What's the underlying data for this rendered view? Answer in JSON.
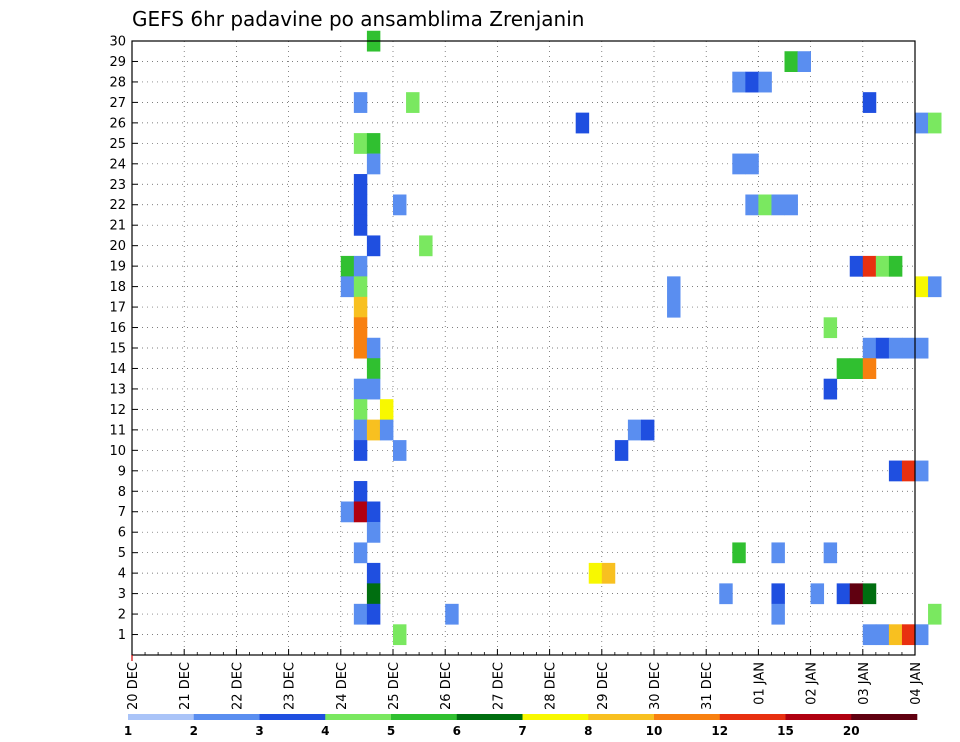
{
  "chart_data": {
    "type": "heatmap",
    "title": "GEFS 6hr padavine po ansamblima Zrenjanin",
    "x_tick_labels": [
      "20 DEC",
      "21 DEC",
      "22 DEC",
      "23 DEC",
      "24 DEC",
      "25 DEC",
      "26 DEC",
      "27 DEC",
      "28 DEC",
      "29 DEC",
      "30 DEC",
      "31 DEC",
      "01 JAN",
      "02 JAN",
      "03 JAN",
      "04 JAN"
    ],
    "y_tick_labels": [
      "1",
      "2",
      "3",
      "4",
      "5",
      "6",
      "7",
      "8",
      "9",
      "10",
      "11",
      "12",
      "13",
      "14",
      "15",
      "16",
      "17",
      "18",
      "19",
      "20",
      "21",
      "22",
      "23",
      "24",
      "25",
      "26",
      "27",
      "28",
      "29",
      "30"
    ],
    "y_range": [
      0,
      30
    ],
    "x_range_days": [
      0,
      15
    ],
    "grid": true,
    "colorbar": {
      "labels": [
        "1",
        "2",
        "3",
        "4",
        "5",
        "6",
        "7",
        "8",
        "10",
        "12",
        "15",
        "20"
      ],
      "colors": [
        "#aac4f8",
        "#5a8ef0",
        "#1f4fe0",
        "#7ae860",
        "#30c030",
        "#006e10",
        "#f8f800",
        "#f8c020",
        "#f88010",
        "#e83010",
        "#b00010",
        "#600010"
      ]
    },
    "cells": [
      {
        "m": 30,
        "t": 18,
        "c": 4
      },
      {
        "m": 29,
        "t": 50,
        "c": 4
      },
      {
        "m": 29,
        "t": 51,
        "c": 1
      },
      {
        "m": 28,
        "t": 46,
        "c": 1
      },
      {
        "m": 28,
        "t": 47,
        "c": 2
      },
      {
        "m": 28,
        "t": 48,
        "c": 1
      },
      {
        "m": 27,
        "t": 17,
        "c": 1
      },
      {
        "m": 27,
        "t": 21,
        "c": 3
      },
      {
        "m": 27,
        "t": 56,
        "c": 2
      },
      {
        "m": 26,
        "t": 34,
        "c": 2
      },
      {
        "m": 26,
        "t": 60,
        "c": 1
      },
      {
        "m": 26,
        "t": 61,
        "c": 3
      },
      {
        "m": 25,
        "t": 17,
        "c": 3
      },
      {
        "m": 25,
        "t": 18,
        "c": 4
      },
      {
        "m": 24,
        "t": 18,
        "c": 1
      },
      {
        "m": 24,
        "t": 46,
        "c": 1
      },
      {
        "m": 24,
        "t": 47,
        "c": 1
      },
      {
        "m": 23,
        "t": 17,
        "c": 2
      },
      {
        "m": 22,
        "t": 17,
        "c": 2
      },
      {
        "m": 22,
        "t": 20,
        "c": 1
      },
      {
        "m": 22,
        "t": 47,
        "c": 1
      },
      {
        "m": 22,
        "t": 48,
        "c": 3
      },
      {
        "m": 22,
        "t": 49,
        "c": 1
      },
      {
        "m": 22,
        "t": 50,
        "c": 1
      },
      {
        "m": 21,
        "t": 17,
        "c": 2
      },
      {
        "m": 20,
        "t": 18,
        "c": 2
      },
      {
        "m": 20,
        "t": 22,
        "c": 3
      },
      {
        "m": 19,
        "t": 16,
        "c": 4
      },
      {
        "m": 19,
        "t": 17,
        "c": 1
      },
      {
        "m": 19,
        "t": 55,
        "c": 2
      },
      {
        "m": 19,
        "t": 56,
        "c": 9
      },
      {
        "m": 19,
        "t": 57,
        "c": 3
      },
      {
        "m": 19,
        "t": 58,
        "c": 4
      },
      {
        "m": 18,
        "t": 16,
        "c": 1
      },
      {
        "m": 18,
        "t": 17,
        "c": 3
      },
      {
        "m": 18,
        "t": 41,
        "c": 1
      },
      {
        "m": 18,
        "t": 60,
        "c": 6
      },
      {
        "m": 18,
        "t": 61,
        "c": 1
      },
      {
        "m": 17,
        "t": 17,
        "c": 7
      },
      {
        "m": 17,
        "t": 41,
        "c": 1
      },
      {
        "m": 16,
        "t": 17,
        "c": 8
      },
      {
        "m": 16,
        "t": 53,
        "c": 3
      },
      {
        "m": 15,
        "t": 17,
        "c": 8
      },
      {
        "m": 15,
        "t": 18,
        "c": 1
      },
      {
        "m": 15,
        "t": 56,
        "c": 1
      },
      {
        "m": 15,
        "t": 57,
        "c": 2
      },
      {
        "m": 15,
        "t": 58,
        "c": 1
      },
      {
        "m": 15,
        "t": 59,
        "c": 1
      },
      {
        "m": 15,
        "t": 60,
        "c": 1
      },
      {
        "m": 14,
        "t": 18,
        "c": 4
      },
      {
        "m": 14,
        "t": 54,
        "c": 4
      },
      {
        "m": 14,
        "t": 55,
        "c": 4
      },
      {
        "m": 14,
        "t": 56,
        "c": 8
      },
      {
        "m": 13,
        "t": 17,
        "c": 1
      },
      {
        "m": 13,
        "t": 18,
        "c": 1
      },
      {
        "m": 13,
        "t": 53,
        "c": 2
      },
      {
        "m": 12,
        "t": 17,
        "c": 3
      },
      {
        "m": 12,
        "t": 19,
        "c": 6
      },
      {
        "m": 11,
        "t": 17,
        "c": 1
      },
      {
        "m": 11,
        "t": 18,
        "c": 7
      },
      {
        "m": 11,
        "t": 19,
        "c": 1
      },
      {
        "m": 11,
        "t": 38,
        "c": 1
      },
      {
        "m": 11,
        "t": 39,
        "c": 2
      },
      {
        "m": 10,
        "t": 17,
        "c": 2
      },
      {
        "m": 10,
        "t": 20,
        "c": 1
      },
      {
        "m": 10,
        "t": 37,
        "c": 2
      },
      {
        "m": 9,
        "t": 58,
        "c": 2
      },
      {
        "m": 9,
        "t": 59,
        "c": 9
      },
      {
        "m": 9,
        "t": 60,
        "c": 1
      },
      {
        "m": 8,
        "t": 17,
        "c": 2
      },
      {
        "m": 7,
        "t": 16,
        "c": 1
      },
      {
        "m": 7,
        "t": 17,
        "c": 10
      },
      {
        "m": 7,
        "t": 18,
        "c": 2
      },
      {
        "m": 6,
        "t": 18,
        "c": 1
      },
      {
        "m": 5,
        "t": 17,
        "c": 1
      },
      {
        "m": 5,
        "t": 46,
        "c": 4
      },
      {
        "m": 5,
        "t": 49,
        "c": 1
      },
      {
        "m": 5,
        "t": 53,
        "c": 1
      },
      {
        "m": 4,
        "t": 18,
        "c": 2
      },
      {
        "m": 4,
        "t": 35,
        "c": 6
      },
      {
        "m": 4,
        "t": 36,
        "c": 7
      },
      {
        "m": 3,
        "t": 18,
        "c": 5
      },
      {
        "m": 3,
        "t": 45,
        "c": 1
      },
      {
        "m": 3,
        "t": 49,
        "c": 2
      },
      {
        "m": 3,
        "t": 52,
        "c": 1
      },
      {
        "m": 3,
        "t": 54,
        "c": 2
      },
      {
        "m": 3,
        "t": 55,
        "c": 11
      },
      {
        "m": 3,
        "t": 56,
        "c": 5
      },
      {
        "m": 2,
        "t": 17,
        "c": 1
      },
      {
        "m": 2,
        "t": 18,
        "c": 2
      },
      {
        "m": 2,
        "t": 24,
        "c": 1
      },
      {
        "m": 2,
        "t": 49,
        "c": 1
      },
      {
        "m": 2,
        "t": 61,
        "c": 3
      },
      {
        "m": 1,
        "t": 20,
        "c": 3
      },
      {
        "m": 1,
        "t": 56,
        "c": 1
      },
      {
        "m": 1,
        "t": 57,
        "c": 1
      },
      {
        "m": 1,
        "t": 58,
        "c": 7
      },
      {
        "m": 1,
        "t": 59,
        "c": 9
      },
      {
        "m": 1,
        "t": 60,
        "c": 1
      }
    ]
  }
}
